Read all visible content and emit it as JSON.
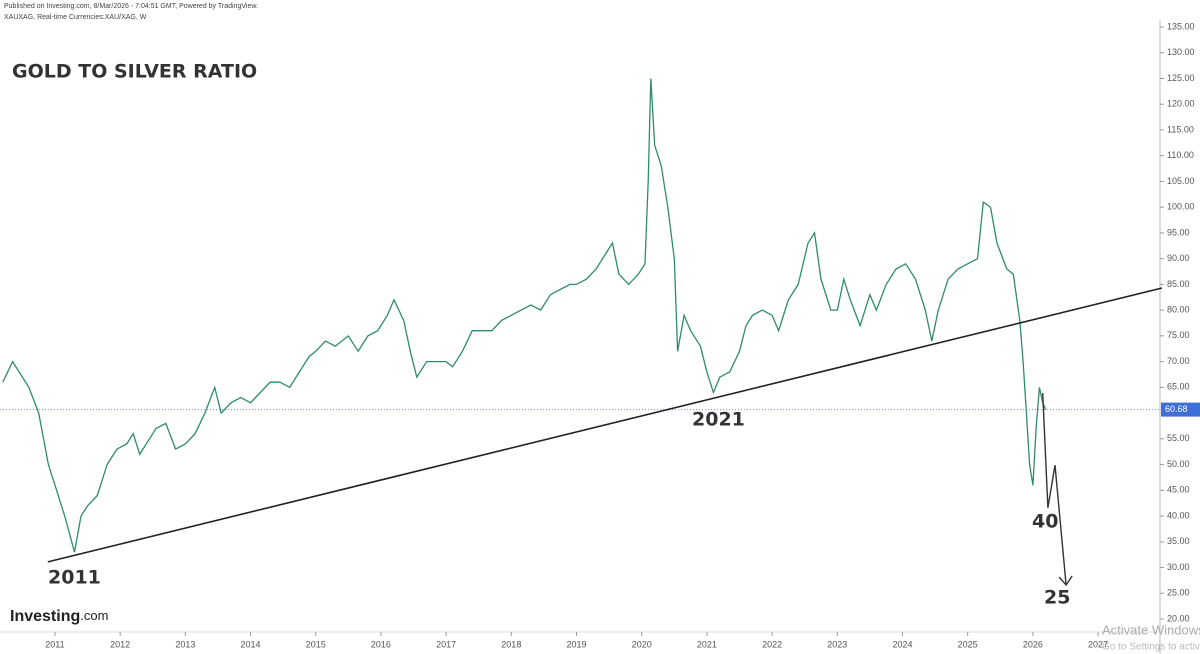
{
  "header": {
    "published": "Published on Investing.com, 8/Mar/2026 - 7:04:51 GMT, Powered by TradingView.",
    "symbol": "XAUXAG, Real-time Currencies:XAU/XAG, W"
  },
  "logo": {
    "name": "Investing",
    "suffix": ".com"
  },
  "watermark": {
    "line1": "Activate Windows",
    "line2": "Go to Settings to activate Windows."
  },
  "chart_data": {
    "type": "line",
    "title": "GOLD TO SILVER RATIO",
    "color": "#2e8b6e",
    "x": [
      2010.2,
      2010.35,
      2010.5,
      2010.6,
      2010.75,
      2010.9,
      2011.0,
      2011.15,
      2011.3,
      2011.4,
      2011.5,
      2011.65,
      2011.8,
      2011.95,
      2012.1,
      2012.2,
      2012.3,
      2012.45,
      2012.55,
      2012.7,
      2012.85,
      2013.0,
      2013.15,
      2013.3,
      2013.45,
      2013.55,
      2013.7,
      2013.85,
      2014.0,
      2014.15,
      2014.3,
      2014.45,
      2014.6,
      2014.75,
      2014.9,
      2015.0,
      2015.15,
      2015.3,
      2015.5,
      2015.65,
      2015.8,
      2015.95,
      2016.1,
      2016.2,
      2016.35,
      2016.45,
      2016.55,
      2016.7,
      2016.85,
      2017.0,
      2017.1,
      2017.25,
      2017.4,
      2017.55,
      2017.7,
      2017.85,
      2018.0,
      2018.15,
      2018.3,
      2018.45,
      2018.6,
      2018.75,
      2018.9,
      2019.0,
      2019.15,
      2019.3,
      2019.45,
      2019.55,
      2019.65,
      2019.8,
      2019.95,
      2020.05,
      2020.1,
      2020.14,
      2020.2,
      2020.3,
      2020.4,
      2020.5,
      2020.55,
      2020.65,
      2020.75,
      2020.9,
      2021.0,
      2021.1,
      2021.2,
      2021.35,
      2021.5,
      2021.6,
      2021.7,
      2021.85,
      2022.0,
      2022.1,
      2022.25,
      2022.4,
      2022.55,
      2022.65,
      2022.75,
      2022.9,
      2023.0,
      2023.1,
      2023.2,
      2023.35,
      2023.5,
      2023.6,
      2023.75,
      2023.9,
      2024.05,
      2024.2,
      2024.35,
      2024.45,
      2024.55,
      2024.7,
      2024.85,
      2025.0,
      2025.15,
      2025.24,
      2025.35,
      2025.45,
      2025.6,
      2025.7,
      2025.8,
      2025.85,
      2025.9,
      2025.95,
      2026.0,
      2026.05,
      2026.1,
      2026.15,
      2026.2
    ],
    "values": [
      66,
      70,
      67,
      65,
      60,
      50,
      46,
      40,
      33,
      40,
      42,
      44,
      50,
      53,
      54,
      56,
      52,
      55,
      57,
      58,
      53,
      54,
      56,
      60,
      65,
      60,
      62,
      63,
      62,
      64,
      66,
      66,
      65,
      68,
      71,
      72,
      74,
      73,
      75,
      72,
      75,
      76,
      79,
      82,
      78,
      72,
      67,
      70,
      70,
      70,
      69,
      72,
      76,
      76,
      76,
      78,
      79,
      80,
      81,
      80,
      83,
      84,
      85,
      85,
      86,
      88,
      91,
      93,
      87,
      85,
      87,
      89,
      105,
      125,
      112,
      108,
      100,
      90,
      72,
      79,
      76,
      73,
      68,
      64,
      67,
      68,
      72,
      77,
      79,
      80,
      79,
      76,
      82,
      85,
      93,
      95,
      86,
      80,
      80,
      86,
      82,
      77,
      83,
      80,
      85,
      88,
      89,
      86,
      80,
      74,
      80,
      86,
      88,
      89,
      90,
      101,
      100,
      93,
      88,
      87,
      78,
      70,
      60,
      50,
      46,
      57,
      65,
      62,
      60.68
    ],
    "last_value": 60.68,
    "trend_line": {
      "x": [
        2010.89,
        2027.98
      ],
      "values": [
        31.1,
        84.3
      ]
    },
    "projection": {
      "x": [
        2026.15,
        2026.23,
        2026.34,
        2026.51
      ],
      "values": [
        63.9,
        41.6,
        49.9,
        26.6
      ]
    },
    "annotations": [
      "2011",
      "2021",
      "40",
      "25"
    ],
    "xlim": [
      2010.157,
      2027.95
    ],
    "xticks": [
      2011,
      2012,
      2013,
      2014,
      2015,
      2016,
      2017,
      2018,
      2019,
      2020,
      2021,
      2022,
      2023,
      2024,
      2025,
      2026,
      2027
    ],
    "ylim": [
      19.03,
      135
    ],
    "yticks": [
      {
        "value": 20,
        "label": "20.00"
      },
      {
        "value": 25,
        "label": "25.00"
      },
      {
        "value": 30,
        "label": "30.00"
      },
      {
        "value": 35,
        "label": "35.00"
      },
      {
        "value": 40,
        "label": "40.00"
      },
      {
        "value": 45,
        "label": "45.00"
      },
      {
        "value": 50,
        "label": "50.00"
      },
      {
        "value": 55,
        "label": "55.00"
      },
      {
        "value": 65,
        "label": "65.00"
      },
      {
        "value": 70,
        "label": "70.00"
      },
      {
        "value": 75,
        "label": "75.00"
      },
      {
        "value": 80,
        "label": "80.00"
      },
      {
        "value": 85,
        "label": "85.00"
      },
      {
        "value": 90,
        "label": "90.00"
      },
      {
        "value": 95,
        "label": "95.00"
      },
      {
        "value": 100,
        "label": "100.00"
      },
      {
        "value": 105,
        "label": "105.00"
      },
      {
        "value": 110,
        "label": "110.00"
      },
      {
        "value": 115,
        "label": "115.00"
      },
      {
        "value": 120,
        "label": "120.00"
      },
      {
        "value": 125,
        "label": "125.00"
      },
      {
        "value": 130,
        "label": "130.00"
      },
      {
        "value": 135,
        "label": "135.00"
      }
    ],
    "grid": false
  }
}
